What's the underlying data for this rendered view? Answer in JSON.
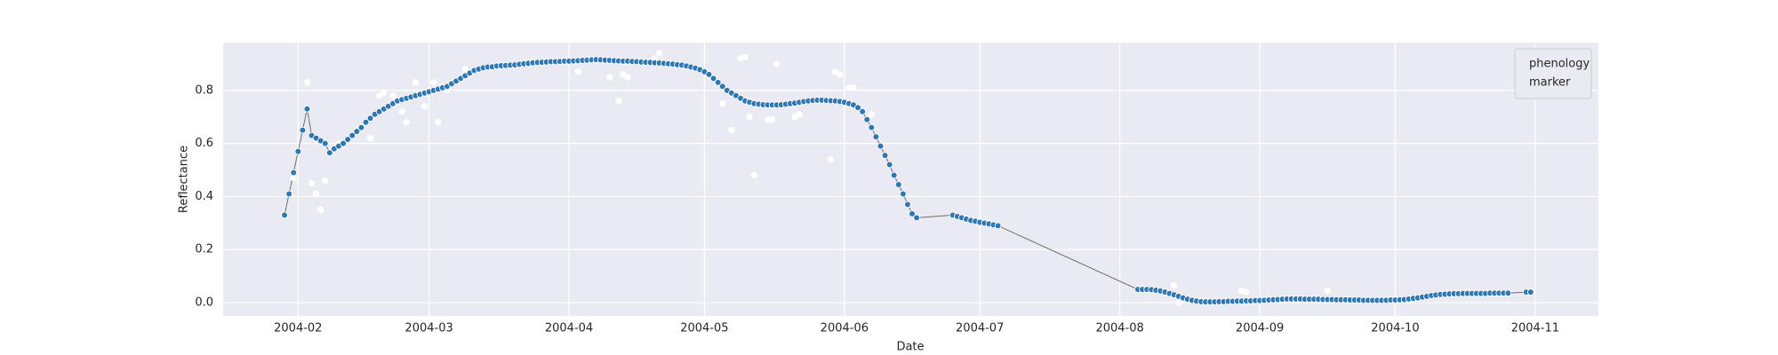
{
  "chart_data": {
    "type": "scatter",
    "x_label": "Date",
    "y_label": "Reflectance",
    "xlim": [
      14.4,
      319
    ],
    "ylim": [
      -0.05,
      0.98
    ],
    "xticks": [
      {
        "value": 31,
        "label": "2004-02"
      },
      {
        "value": 60,
        "label": "2004-03"
      },
      {
        "value": 91,
        "label": "2004-04"
      },
      {
        "value": 121,
        "label": "2004-05"
      },
      {
        "value": 152,
        "label": "2004-06"
      },
      {
        "value": 182,
        "label": "2004-07"
      },
      {
        "value": 213,
        "label": "2004-08"
      },
      {
        "value": 244,
        "label": "2004-09"
      },
      {
        "value": 274,
        "label": "2004-10"
      },
      {
        "value": 305,
        "label": "2004-11"
      }
    ],
    "yticks": [
      {
        "value": 0,
        "label": "0.0"
      },
      0.2,
      0.4,
      0.6,
      0.8
    ],
    "grid": true,
    "background": "#eaeaf2",
    "legend": "upper right",
    "series": [
      {
        "name": "phenology",
        "color": "#2f77b0",
        "line_color": "#6e6e6e",
        "x": [
          28,
          29,
          30,
          31,
          32,
          33,
          34,
          35,
          36,
          37,
          38,
          39,
          40,
          41,
          42,
          43,
          44,
          45,
          46,
          47,
          48,
          49,
          50,
          51,
          52,
          53,
          54,
          55,
          56,
          57,
          58,
          59,
          60,
          61,
          62,
          63,
          64,
          65,
          66,
          67,
          68,
          69,
          70,
          71,
          72,
          73,
          74,
          75,
          76,
          77,
          78,
          79,
          80,
          81,
          82,
          83,
          84,
          85,
          86,
          87,
          88,
          89,
          90,
          91,
          92,
          93,
          94,
          95,
          96,
          97,
          98,
          99,
          100,
          101,
          102,
          103,
          104,
          105,
          106,
          107,
          108,
          109,
          110,
          111,
          112,
          113,
          114,
          115,
          116,
          117,
          118,
          119,
          120,
          121,
          122,
          123,
          124,
          125,
          126,
          127,
          128,
          129,
          130,
          131,
          132,
          133,
          134,
          135,
          136,
          137,
          138,
          139,
          140,
          141,
          142,
          143,
          144,
          145,
          146,
          147,
          148,
          149,
          150,
          151,
          152,
          153,
          154,
          155,
          156,
          157,
          158,
          159,
          160,
          161,
          162,
          163,
          164,
          165,
          166,
          167,
          168,
          176,
          177,
          178,
          179,
          180,
          181,
          182,
          183,
          184,
          185,
          186,
          217,
          218,
          219,
          220,
          221,
          222,
          223,
          224,
          225,
          226,
          227,
          228,
          229,
          230,
          231,
          232,
          233,
          234,
          235,
          236,
          237,
          238,
          239,
          240,
          241,
          242,
          243,
          244,
          245,
          246,
          247,
          248,
          249,
          250,
          251,
          252,
          253,
          254,
          255,
          256,
          257,
          258,
          259,
          260,
          261,
          262,
          263,
          264,
          265,
          266,
          267,
          268,
          269,
          270,
          271,
          272,
          273,
          274,
          275,
          276,
          277,
          278,
          279,
          280,
          281,
          282,
          283,
          284,
          285,
          286,
          287,
          288,
          289,
          290,
          291,
          292,
          293,
          294,
          295,
          296,
          297,
          298,
          299,
          303,
          304
        ],
        "values": [
          0.33,
          0.41,
          0.49,
          0.57,
          0.65,
          0.73,
          0.63,
          0.62,
          0.61,
          0.6,
          0.565,
          0.58,
          0.59,
          0.6,
          0.615,
          0.63,
          0.645,
          0.66,
          0.68,
          0.695,
          0.71,
          0.72,
          0.73,
          0.74,
          0.75,
          0.76,
          0.765,
          0.77,
          0.775,
          0.78,
          0.785,
          0.79,
          0.795,
          0.8,
          0.805,
          0.81,
          0.815,
          0.825,
          0.835,
          0.845,
          0.855,
          0.865,
          0.875,
          0.88,
          0.885,
          0.888,
          0.889,
          0.892,
          0.893,
          0.894,
          0.895,
          0.896,
          0.898,
          0.9,
          0.902,
          0.904,
          0.905,
          0.906,
          0.907,
          0.908,
          0.908,
          0.909,
          0.91,
          0.91,
          0.911,
          0.912,
          0.913,
          0.914,
          0.915,
          0.916,
          0.915,
          0.914,
          0.913,
          0.912,
          0.911,
          0.91,
          0.91,
          0.909,
          0.908,
          0.907,
          0.906,
          0.905,
          0.904,
          0.903,
          0.902,
          0.9,
          0.899,
          0.897,
          0.895,
          0.892,
          0.888,
          0.884,
          0.878,
          0.87,
          0.86,
          0.845,
          0.83,
          0.815,
          0.8,
          0.79,
          0.78,
          0.77,
          0.76,
          0.755,
          0.75,
          0.748,
          0.746,
          0.745,
          0.745,
          0.745,
          0.746,
          0.748,
          0.75,
          0.752,
          0.755,
          0.758,
          0.76,
          0.762,
          0.763,
          0.763,
          0.762,
          0.761,
          0.76,
          0.758,
          0.755,
          0.75,
          0.745,
          0.735,
          0.72,
          0.69,
          0.66,
          0.625,
          0.59,
          0.555,
          0.52,
          0.48,
          0.445,
          0.41,
          0.37,
          0.335,
          0.32,
          0.33,
          0.325,
          0.32,
          0.315,
          0.31,
          0.307,
          0.303,
          0.3,
          0.297,
          0.293,
          0.29,
          0.05,
          0.05,
          0.05,
          0.049,
          0.047,
          0.044,
          0.04,
          0.035,
          0.03,
          0.024,
          0.018,
          0.013,
          0.009,
          0.006,
          0.004,
          0.003,
          0.003,
          0.003,
          0.004,
          0.004,
          0.005,
          0.005,
          0.006,
          0.006,
          0.007,
          0.007,
          0.008,
          0.008,
          0.009,
          0.01,
          0.011,
          0.012,
          0.013,
          0.014,
          0.014,
          0.014,
          0.014,
          0.013,
          0.013,
          0.013,
          0.013,
          0.012,
          0.012,
          0.012,
          0.011,
          0.011,
          0.011,
          0.01,
          0.01,
          0.01,
          0.009,
          0.009,
          0.009,
          0.009,
          0.009,
          0.009,
          0.01,
          0.01,
          0.011,
          0.012,
          0.014,
          0.016,
          0.018,
          0.021,
          0.024,
          0.027,
          0.029,
          0.031,
          0.032,
          0.033,
          0.034,
          0.034,
          0.035,
          0.035,
          0.035,
          0.035,
          0.035,
          0.035,
          0.036,
          0.036,
          0.036,
          0.036,
          0.036,
          0.04,
          0.04
        ]
      },
      {
        "name": "marker",
        "color": "#ffffff",
        "x": [
          30,
          33,
          34,
          35,
          36,
          37,
          40,
          44,
          47,
          49,
          50,
          52,
          54,
          55,
          57,
          59,
          61,
          62,
          64,
          68,
          93,
          100,
          102,
          103,
          104,
          110,
          111,
          125,
          127,
          129,
          130,
          131,
          132,
          135,
          136,
          137,
          141,
          142,
          149,
          150,
          151,
          153,
          154,
          158,
          225,
          226,
          240,
          241,
          259
        ],
        "values": [
          0.47,
          0.83,
          0.45,
          0.41,
          0.35,
          0.46,
          0.6,
          0.65,
          0.62,
          0.78,
          0.79,
          0.78,
          0.72,
          0.68,
          0.83,
          0.74,
          0.83,
          0.68,
          0.8,
          0.88,
          0.87,
          0.85,
          0.76,
          0.86,
          0.85,
          0.92,
          0.94,
          0.75,
          0.65,
          0.92,
          0.925,
          0.7,
          0.48,
          0.69,
          0.69,
          0.9,
          0.7,
          0.71,
          0.54,
          0.87,
          0.86,
          0.81,
          0.81,
          0.71,
          0.065,
          0.0,
          0.045,
          0.04,
          0.045
        ]
      }
    ]
  }
}
